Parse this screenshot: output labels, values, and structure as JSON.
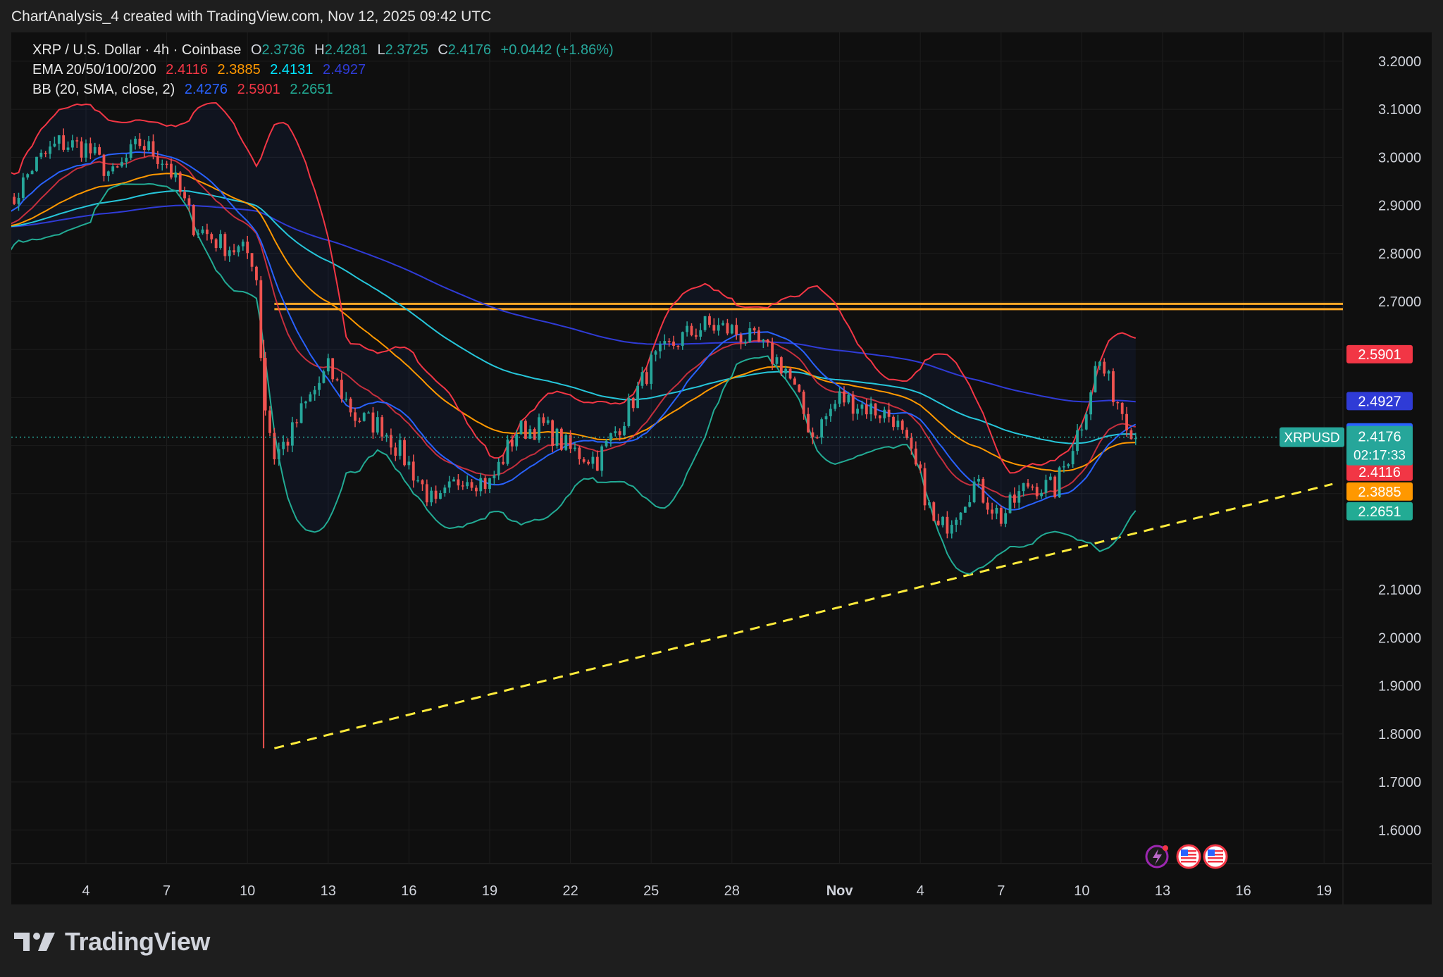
{
  "header": {
    "text": "ChartAnalysis_4 created with TradingView.com, Nov 12, 2025 09:42 UTC"
  },
  "legend": {
    "symbol": "XRP / U.S. Dollar · 4h · Coinbase",
    "o_label": "O",
    "o_value": "2.3736",
    "h_label": "H",
    "h_value": "2.4281",
    "l_label": "L",
    "l_value": "2.3725",
    "c_label": "C",
    "c_value": "2.4176",
    "change": "+0.0442 (+1.86%)",
    "ema_label": "EMA 20/50/100/200",
    "ema_values": [
      "2.4116",
      "2.3885",
      "2.4131",
      "2.4927"
    ],
    "bb_label": "BB (20, SMA, close, 2)",
    "bb_values": [
      "2.4276",
      "2.5901",
      "2.2651"
    ]
  },
  "footer": {
    "brand": "TradingView",
    "logo_icon": "tradingview-logo-icon"
  },
  "price_tag": {
    "symbol": "XRPUSD",
    "price": "2.4176",
    "countdown": "02:17:33"
  },
  "colors": {
    "ema20": "#f23645",
    "ema50": "#ff9800",
    "ema100": "#26c6da",
    "ema200": "#2f3bd6",
    "bb_basis": "#2962ff",
    "bb_upper": "#f23645",
    "bb_lower": "#22ab94",
    "up": "#26a69a",
    "down": "#ef5350",
    "resistance": "#ffa726",
    "trendline": "#ffeb3b"
  },
  "chart_data": {
    "type": "candlestick",
    "timeframe": "4h",
    "y_axis_labels": [
      "3.2000",
      "3.1000",
      "3.0000",
      "2.9000",
      "2.8000",
      "2.7000",
      "2.1000",
      "2.0000",
      "1.9000",
      "1.8000",
      "1.7000",
      "1.6000"
    ],
    "x_axis_labels": [
      "4",
      "7",
      "10",
      "13",
      "16",
      "19",
      "22",
      "25",
      "28",
      "Nov",
      "4",
      "7",
      "10",
      "13",
      "16",
      "19"
    ],
    "ylim": [
      1.53,
      3.26
    ],
    "grid": true,
    "price_labels": [
      {
        "value": "2.5901",
        "price": 2.5901,
        "color": "#f23645"
      },
      {
        "value": "2.4927",
        "price": 2.4927,
        "color": "#2f3bd6"
      },
      {
        "value": "2.4276",
        "price": 2.4276,
        "color": "#2962ff"
      },
      {
        "value": "2.4131",
        "price": 2.4131,
        "color": "#00e5ff",
        "dark_text": true
      },
      {
        "value": "2.4116",
        "price": 2.4116,
        "color": "#f23645"
      },
      {
        "value": "2.3885",
        "price": 2.3885,
        "color": "#ff9800"
      },
      {
        "value": "2.2651",
        "price": 2.2651,
        "color": "#22ab94"
      }
    ],
    "resistance": {
      "from_date": "Oct 11",
      "upper": 2.695,
      "lower": 2.684
    },
    "trendline": {
      "points": [
        {
          "date": "Oct 11",
          "price": 1.77
        },
        {
          "date": "Nov 19",
          "price": 2.32
        }
      ]
    },
    "anchors": [
      {
        "date": "Oct 1",
        "price": 2.88
      },
      {
        "date": "Oct 2",
        "price": 2.98
      },
      {
        "date": "Oct 3",
        "price": 3.03
      },
      {
        "date": "Oct 4",
        "price": 3.02
      },
      {
        "date": "Oct 5",
        "price": 2.96
      },
      {
        "date": "Oct 6",
        "price": 3.03
      },
      {
        "date": "Oct 7",
        "price": 2.99
      },
      {
        "date": "Oct 8",
        "price": 2.86
      },
      {
        "date": "Oct 9",
        "price": 2.82
      },
      {
        "date": "Oct 10",
        "price": 2.8
      },
      {
        "date": "Oct 10.3",
        "price": 2.78
      },
      {
        "date": "Oct 10.6",
        "price": 2.5
      },
      {
        "date": "Oct 11",
        "price": 2.38
      },
      {
        "date": "Oct 11.6",
        "price": 2.42
      },
      {
        "date": "Oct 12",
        "price": 2.47
      },
      {
        "date": "Oct 13",
        "price": 2.56
      },
      {
        "date": "Oct 14",
        "price": 2.46
      },
      {
        "date": "Oct 15",
        "price": 2.44
      },
      {
        "date": "Oct 16",
        "price": 2.36
      },
      {
        "date": "Oct 17",
        "price": 2.27
      },
      {
        "date": "Oct 18",
        "price": 2.34
      },
      {
        "date": "Oct 19",
        "price": 2.32
      },
      {
        "date": "Oct 20",
        "price": 2.43
      },
      {
        "date": "Oct 21",
        "price": 2.44
      },
      {
        "date": "Oct 22",
        "price": 2.39
      },
      {
        "date": "Oct 23",
        "price": 2.37
      },
      {
        "date": "Oct 24",
        "price": 2.46
      },
      {
        "date": "Oct 25",
        "price": 2.57
      },
      {
        "date": "Oct 26",
        "price": 2.62
      },
      {
        "date": "Oct 27",
        "price": 2.65
      },
      {
        "date": "Oct 28",
        "price": 2.64
      },
      {
        "date": "Oct 29",
        "price": 2.61
      },
      {
        "date": "Oct 30",
        "price": 2.56
      },
      {
        "date": "Oct 31",
        "price": 2.42
      },
      {
        "date": "Nov 1",
        "price": 2.5
      },
      {
        "date": "Nov 2",
        "price": 2.48
      },
      {
        "date": "Nov 3",
        "price": 2.46
      },
      {
        "date": "Nov 4",
        "price": 2.33
      },
      {
        "date": "Nov 4.6",
        "price": 2.22
      },
      {
        "date": "Nov 5",
        "price": 2.24
      },
      {
        "date": "Nov 6",
        "price": 2.32
      },
      {
        "date": "Nov 7",
        "price": 2.25
      },
      {
        "date": "Nov 8",
        "price": 2.32
      },
      {
        "date": "Nov 9",
        "price": 2.31
      },
      {
        "date": "Nov 10",
        "price": 2.45
      },
      {
        "date": "Nov 10.6",
        "price": 2.58
      },
      {
        "date": "Nov 11",
        "price": 2.53
      },
      {
        "date": "Nov 12",
        "price": 2.42
      }
    ]
  }
}
